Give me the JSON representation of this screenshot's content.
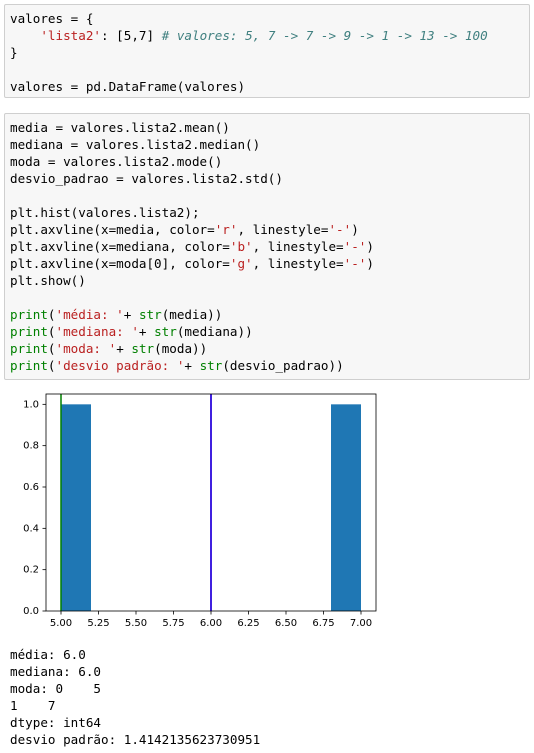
{
  "cells": [
    {
      "lines": [
        [
          [
            "valores = {",
            "n"
          ]
        ],
        [
          [
            "    ",
            "n"
          ],
          [
            "'lista2'",
            "s"
          ],
          [
            ": [5,7] ",
            "n"
          ],
          [
            "# valores: 5, 7 -> 7 -> 9 -> 1 -> 13 -> 100",
            "c"
          ]
        ],
        [
          [
            "}",
            "n"
          ]
        ],
        [],
        [
          [
            "valores = pd.DataFrame(valores)",
            "n"
          ]
        ]
      ]
    },
    {
      "lines": [
        [
          [
            "media = valores.lista2.mean()",
            "n"
          ]
        ],
        [
          [
            "mediana = valores.lista2.median()",
            "n"
          ]
        ],
        [
          [
            "moda = valores.lista2.mode()",
            "n"
          ]
        ],
        [
          [
            "desvio_padrao = valores.lista2.std()",
            "n"
          ]
        ],
        [],
        [
          [
            "plt.hist(valores.lista2);",
            "n"
          ]
        ],
        [
          [
            "plt.axvline(x=media, color=",
            "n"
          ],
          [
            "'r'",
            "s"
          ],
          [
            ", linestyle=",
            "n"
          ],
          [
            "'-'",
            "s"
          ],
          [
            ")",
            "n"
          ]
        ],
        [
          [
            "plt.axvline(x=mediana, color=",
            "n"
          ],
          [
            "'b'",
            "s"
          ],
          [
            ", linestyle=",
            "n"
          ],
          [
            "'-'",
            "s"
          ],
          [
            ")",
            "n"
          ]
        ],
        [
          [
            "plt.axvline(x=moda[0], color=",
            "n"
          ],
          [
            "'g'",
            "s"
          ],
          [
            ", linestyle=",
            "n"
          ],
          [
            "'-'",
            "s"
          ],
          [
            ")",
            "n"
          ]
        ],
        [
          [
            "plt.show()",
            "n"
          ]
        ],
        [],
        [
          [
            "print",
            "k"
          ],
          [
            "(",
            "n"
          ],
          [
            "'média: '",
            "s"
          ],
          [
            "+ ",
            "n"
          ],
          [
            "str",
            "k"
          ],
          [
            "(media))",
            "n"
          ]
        ],
        [
          [
            "print",
            "k"
          ],
          [
            "(",
            "n"
          ],
          [
            "'mediana: '",
            "s"
          ],
          [
            "+ ",
            "n"
          ],
          [
            "str",
            "k"
          ],
          [
            "(mediana))",
            "n"
          ]
        ],
        [
          [
            "print",
            "k"
          ],
          [
            "(",
            "n"
          ],
          [
            "'moda: '",
            "s"
          ],
          [
            "+ ",
            "n"
          ],
          [
            "str",
            "k"
          ],
          [
            "(moda))",
            "n"
          ]
        ],
        [
          [
            "print",
            "k"
          ],
          [
            "(",
            "n"
          ],
          [
            "'desvio padrão: '",
            "s"
          ],
          [
            "+ ",
            "n"
          ],
          [
            "str",
            "k"
          ],
          [
            "(desvio_padrao))",
            "n"
          ]
        ]
      ]
    }
  ],
  "chart_data": {
    "type": "histogram",
    "bins": [
      5.0,
      5.2,
      5.4,
      5.6,
      5.8,
      6.0,
      6.2,
      6.4,
      6.6,
      6.8,
      7.0
    ],
    "values": [
      1,
      0,
      0,
      0,
      0,
      0,
      0,
      0,
      0,
      1
    ],
    "color": "#1f77b4",
    "vlines": [
      {
        "x": 6.0,
        "color": "#ff0000"
      },
      {
        "x": 6.0,
        "color": "#0000ff"
      },
      {
        "x": 5,
        "color": "#008000"
      }
    ],
    "xlim": [
      4.9,
      7.1
    ],
    "ylim": [
      0,
      1.05
    ],
    "xticks": [
      {
        "value": 5,
        "label": "5.00"
      },
      {
        "value": 5.25,
        "label": "5.25"
      },
      {
        "value": 5.5,
        "label": "5.50"
      },
      {
        "value": 5.75,
        "label": "5.75"
      },
      {
        "value": 6,
        "label": "6.00"
      },
      {
        "value": 6.25,
        "label": "6.25"
      },
      {
        "value": 6.5,
        "label": "6.50"
      },
      {
        "value": 6.75,
        "label": "6.75"
      },
      {
        "value": 7,
        "label": "7.00"
      }
    ],
    "yticks": [
      {
        "value": 0,
        "label": "0.0"
      },
      0.2,
      0.4,
      0.6,
      0.8,
      {
        "value": 1,
        "label": "1.0"
      }
    ]
  },
  "output": [
    "média: 6.0",
    "mediana: 6.0",
    "moda: 0    5",
    "1    7",
    "dtype: int64",
    "desvio padrão: 1.4142135623730951"
  ]
}
